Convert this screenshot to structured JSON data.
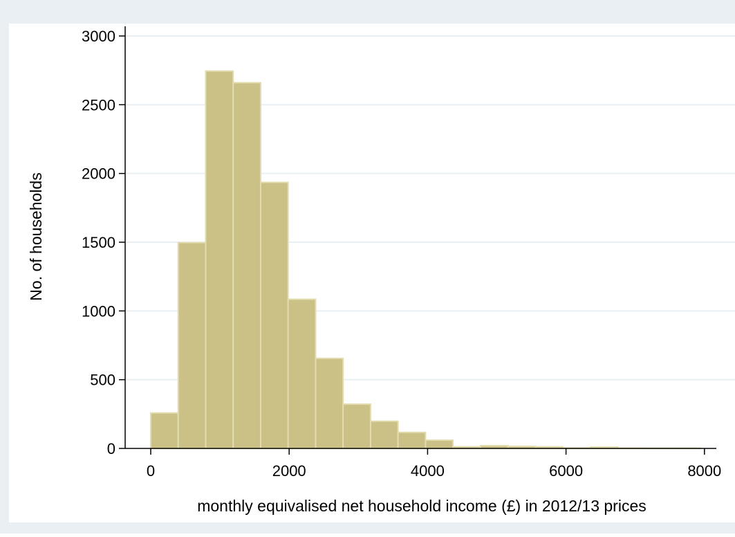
{
  "chart_data": {
    "type": "bar",
    "title": "",
    "xlabel": "monthly equivalised net household income (£) in 2012/13 prices",
    "ylabel": "No. of households",
    "xlim": [
      -430,
      8150
    ],
    "ylim": [
      0,
      3000
    ],
    "x_ticks": [
      "0",
      "2000",
      "4000",
      "6000",
      "8000"
    ],
    "y_ticks": [
      "0",
      "500",
      "1000",
      "1500",
      "2000",
      "2500",
      "3000"
    ],
    "grid": true,
    "bin_width": 397,
    "bins": [
      {
        "x0": 0,
        "x1": 397,
        "value": 258
      },
      {
        "x0": 397,
        "x1": 794,
        "value": 1497
      },
      {
        "x0": 794,
        "x1": 1191,
        "value": 2745
      },
      {
        "x0": 1191,
        "x1": 1588,
        "value": 2660
      },
      {
        "x0": 1588,
        "x1": 1985,
        "value": 1935
      },
      {
        "x0": 1985,
        "x1": 2382,
        "value": 1085
      },
      {
        "x0": 2382,
        "x1": 2779,
        "value": 655
      },
      {
        "x0": 2779,
        "x1": 3176,
        "value": 322
      },
      {
        "x0": 3176,
        "x1": 3573,
        "value": 198
      },
      {
        "x0": 3573,
        "x1": 3970,
        "value": 117
      },
      {
        "x0": 3970,
        "x1": 4367,
        "value": 60
      },
      {
        "x0": 4367,
        "x1": 4764,
        "value": 12
      },
      {
        "x0": 4764,
        "x1": 5161,
        "value": 20
      },
      {
        "x0": 5161,
        "x1": 5558,
        "value": 15
      },
      {
        "x0": 5558,
        "x1": 5955,
        "value": 12
      },
      {
        "x0": 5955,
        "x1": 6352,
        "value": 4
      },
      {
        "x0": 6352,
        "x1": 6749,
        "value": 10
      },
      {
        "x0": 6749,
        "x1": 7146,
        "value": 3
      },
      {
        "x0": 7146,
        "x1": 7543,
        "value": 2
      },
      {
        "x0": 7543,
        "x1": 7940,
        "value": 2
      }
    ],
    "colors": {
      "outer_background": "#e9eff2",
      "plot_background": "#ffffff",
      "bar_fill": "#cbc186",
      "bar_edge": "#e2dcae",
      "grid": "#e9eff2",
      "axis": "#000000"
    }
  }
}
